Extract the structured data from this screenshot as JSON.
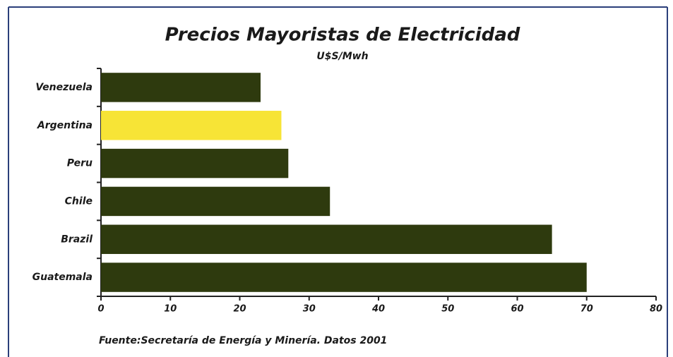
{
  "chart_data": {
    "type": "bar",
    "orientation": "horizontal",
    "title": "Precios Mayoristas de Electricidad",
    "subtitle": "U$S/Mwh",
    "categories": [
      "Venezuela",
      "Argentina",
      "Peru",
      "Chile",
      "Brazil",
      "Guatemala"
    ],
    "values": [
      23,
      26,
      27,
      33,
      65,
      70
    ],
    "colors": [
      "#2e3a0e",
      "#f7e436",
      "#2e3a0e",
      "#2e3a0e",
      "#2e3a0e",
      "#2e3a0e"
    ],
    "xlim": [
      0,
      80
    ],
    "xticks": [
      0,
      10,
      20,
      30,
      40,
      50,
      60,
      70,
      80
    ],
    "source": "Fuente:Secretaría de Energía y Minería. Datos 2001"
  }
}
